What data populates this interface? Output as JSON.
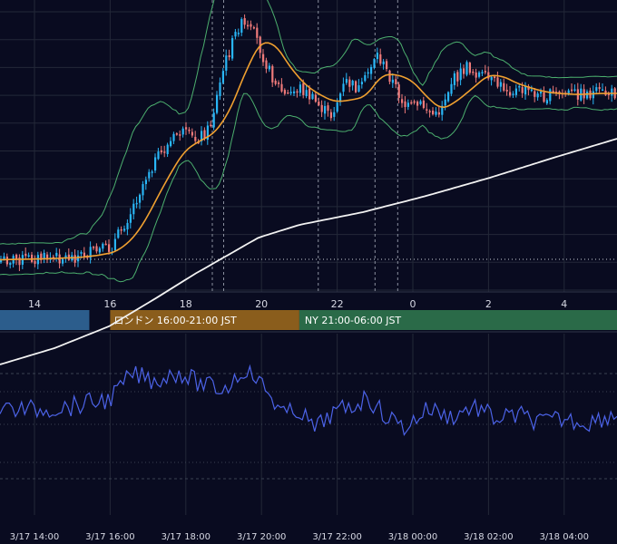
{
  "colors": {
    "background": "#090b20",
    "grid": "#232838",
    "divider": "#2e3448",
    "candle_up": "#29b6f6",
    "candle_down": "#ef7a7a",
    "ma_short": "#f0a030",
    "ma_long": "#f2f2f2",
    "bollinger": "#4caf6e",
    "oscillator": "#4c63e8",
    "session_tokyo": "#2c5d8c",
    "session_london": "#8a5d1c",
    "session_ny": "#2a6a48"
  },
  "top_axis_hours": [
    "14",
    "16",
    "18",
    "20",
    "22",
    "0",
    "2",
    "4"
  ],
  "sessions": [
    {
      "name": "tokyo",
      "label": ""
    },
    {
      "name": "london",
      "label": "ロンドン 16:00-21:00 JST"
    },
    {
      "name": "ny",
      "label": "NY 21:00-06:00 JST"
    }
  ],
  "bottom_axis_times": [
    "3/17 14:00",
    "3/17 16:00",
    "3/17 18:00",
    "3/17 20:00",
    "3/17 22:00",
    "3/18 00:00",
    "3/18 02:00",
    "3/18 04:00"
  ],
  "chart_data": {
    "type": "candlestick",
    "x_hours": [
      14,
      16,
      18,
      20,
      22,
      24,
      26,
      28
    ],
    "price_series_shape": [
      [
        13,
        0.89
      ],
      [
        15,
        0.88
      ],
      [
        16,
        0.85
      ],
      [
        16.5,
        0.73
      ],
      [
        17,
        0.58
      ],
      [
        17.8,
        0.45
      ],
      [
        18.2,
        0.48
      ],
      [
        18.6,
        0.44
      ],
      [
        19.0,
        0.22
      ],
      [
        19.4,
        0.08
      ],
      [
        19.8,
        0.12
      ],
      [
        20.2,
        0.25
      ],
      [
        20.6,
        0.33
      ],
      [
        21.0,
        0.3
      ],
      [
        21.4,
        0.35
      ],
      [
        21.8,
        0.4
      ],
      [
        22.2,
        0.28
      ],
      [
        22.6,
        0.31
      ],
      [
        23.0,
        0.18
      ],
      [
        23.4,
        0.27
      ],
      [
        23.8,
        0.37
      ],
      [
        24.2,
        0.36
      ],
      [
        24.6,
        0.4
      ],
      [
        25.0,
        0.28
      ],
      [
        25.4,
        0.23
      ],
      [
        25.8,
        0.26
      ],
      [
        26.2,
        0.29
      ],
      [
        26.6,
        0.31
      ],
      [
        27.0,
        0.31
      ],
      [
        27.4,
        0.33
      ],
      [
        28.0,
        0.32
      ],
      [
        29.2,
        0.32
      ]
    ],
    "oscillator_shape": [
      [
        13,
        0.5
      ],
      [
        14,
        0.52
      ],
      [
        15,
        0.48
      ],
      [
        16,
        0.4
      ],
      [
        16.6,
        0.12
      ],
      [
        17.2,
        0.2
      ],
      [
        17.8,
        0.1
      ],
      [
        18.4,
        0.24
      ],
      [
        19.0,
        0.3
      ],
      [
        19.6,
        0.05
      ],
      [
        20.2,
        0.34
      ],
      [
        20.6,
        0.58
      ],
      [
        21.0,
        0.52
      ],
      [
        21.4,
        0.74
      ],
      [
        21.8,
        0.58
      ],
      [
        22.4,
        0.48
      ],
      [
        22.8,
        0.38
      ],
      [
        23.2,
        0.56
      ],
      [
        23.8,
        0.72
      ],
      [
        24.4,
        0.5
      ],
      [
        25.0,
        0.6
      ],
      [
        25.6,
        0.48
      ],
      [
        26.2,
        0.62
      ],
      [
        26.8,
        0.58
      ],
      [
        27.4,
        0.66
      ],
      [
        28.0,
        0.62
      ],
      [
        28.6,
        0.66
      ],
      [
        29.2,
        0.58
      ]
    ]
  }
}
